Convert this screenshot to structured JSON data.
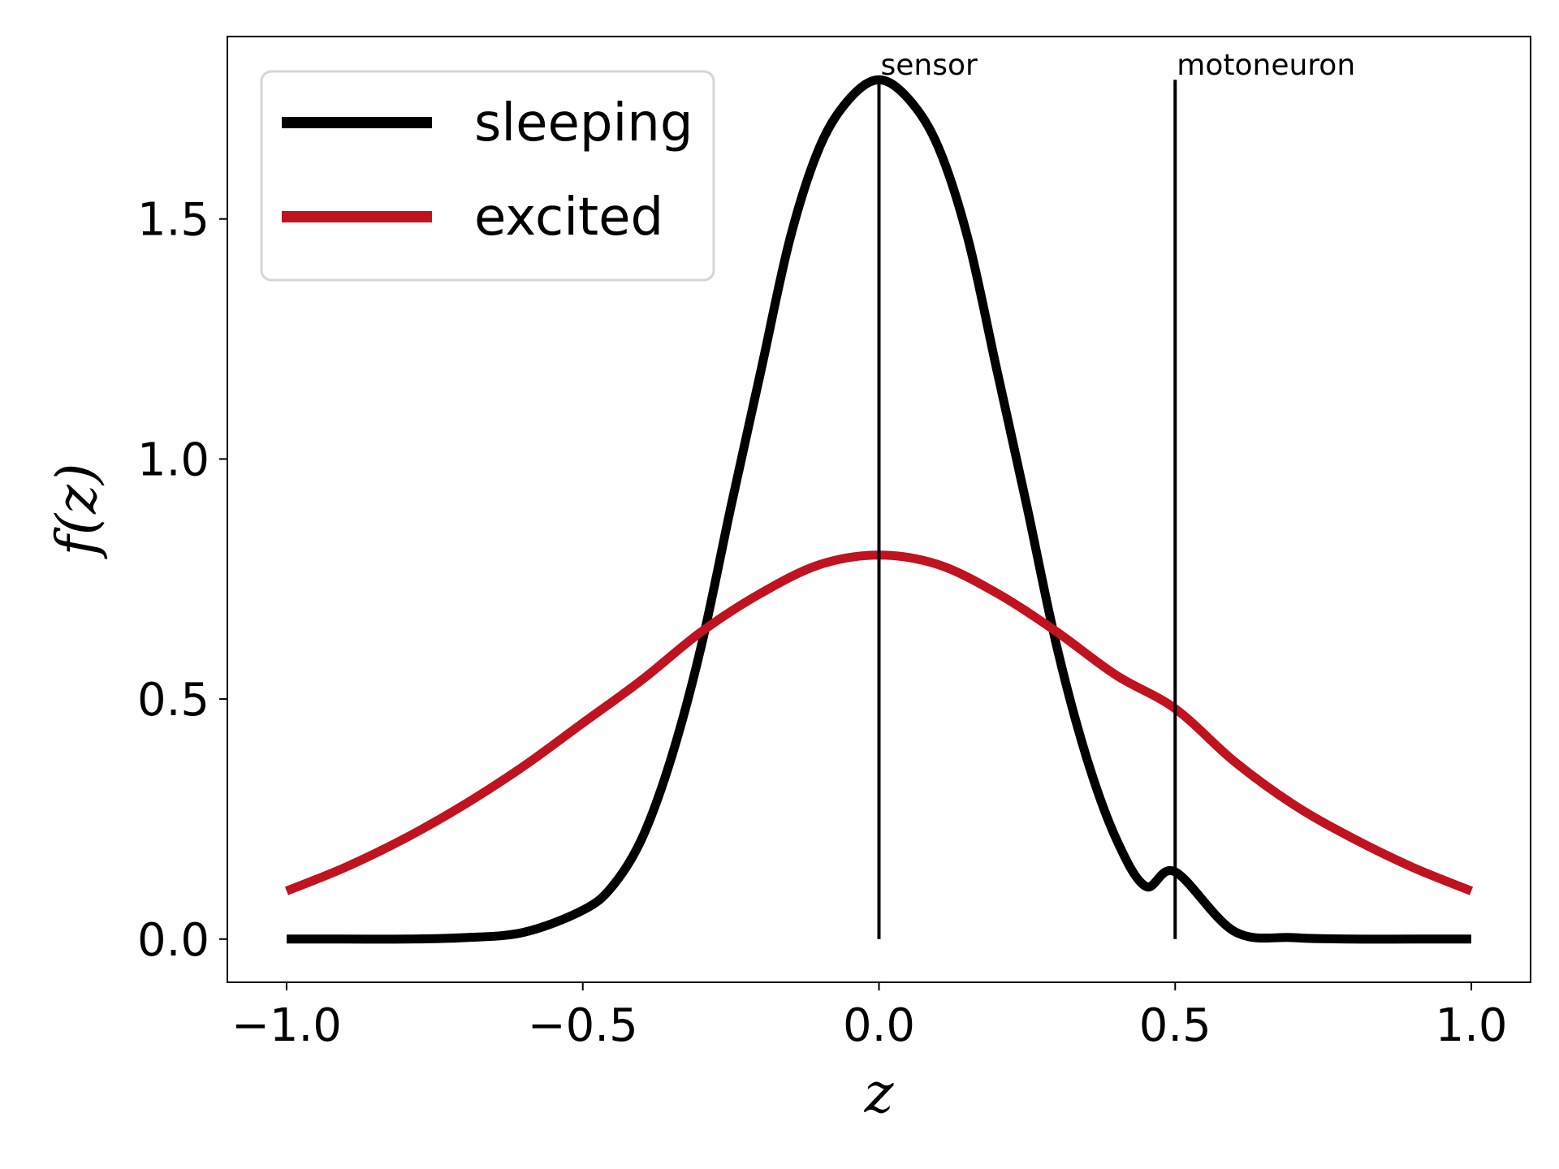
{
  "chart_data": {
    "type": "line",
    "xlabel": "z",
    "ylabel": "f(z)",
    "xlim": [
      -1.1,
      1.1
    ],
    "ylim": [
      -0.09,
      1.88
    ],
    "xticks": [
      -1.0,
      -0.5,
      0.0,
      0.5,
      1.0
    ],
    "xtick_labels": [
      "−1.0",
      "−0.5",
      "0.0",
      "0.5",
      "1.0"
    ],
    "yticks": [
      0.0,
      0.5,
      1.0,
      1.5
    ],
    "ytick_labels": [
      "0.0",
      "0.5",
      "1.0",
      "1.5"
    ],
    "grid": false,
    "legend_position": "top-left",
    "series": [
      {
        "name": "sleeping",
        "color": "#000000",
        "x": [
          -1.0,
          -0.9,
          -0.8,
          -0.7,
          -0.6,
          -0.5,
          -0.45,
          -0.4,
          -0.35,
          -0.3,
          -0.25,
          -0.2,
          -0.15,
          -0.1,
          -0.05,
          0.0,
          0.05,
          0.1,
          0.15,
          0.2,
          0.25,
          0.3,
          0.35,
          0.4,
          0.45,
          0.5,
          0.6,
          0.7,
          0.8,
          0.9,
          1.0
        ],
        "y": [
          0.0,
          0.0,
          0.0,
          0.003,
          0.014,
          0.06,
          0.11,
          0.21,
          0.38,
          0.61,
          0.9,
          1.18,
          1.46,
          1.65,
          1.75,
          1.79,
          1.75,
          1.65,
          1.46,
          1.18,
          0.9,
          0.61,
          0.38,
          0.21,
          0.11,
          0.14,
          0.016,
          0.003,
          0.0,
          0.0,
          0.0
        ]
      },
      {
        "name": "excited",
        "color": "#c0121f",
        "x": [
          -1.0,
          -0.9,
          -0.8,
          -0.7,
          -0.6,
          -0.5,
          -0.4,
          -0.3,
          -0.2,
          -0.1,
          0.0,
          0.1,
          0.2,
          0.3,
          0.4,
          0.5,
          0.6,
          0.7,
          0.8,
          0.9,
          1.0
        ],
        "y": [
          0.1,
          0.15,
          0.21,
          0.28,
          0.36,
          0.45,
          0.54,
          0.64,
          0.72,
          0.78,
          0.8,
          0.78,
          0.72,
          0.64,
          0.55,
          0.48,
          0.37,
          0.28,
          0.21,
          0.15,
          0.1
        ]
      }
    ],
    "vertical_lines": [
      {
        "x": 0.0,
        "y0": 0.0,
        "y1": 1.79,
        "label": "sensor"
      },
      {
        "x": 0.5,
        "y0": 0.0,
        "y1": 1.79,
        "label": "motoneuron"
      }
    ]
  }
}
